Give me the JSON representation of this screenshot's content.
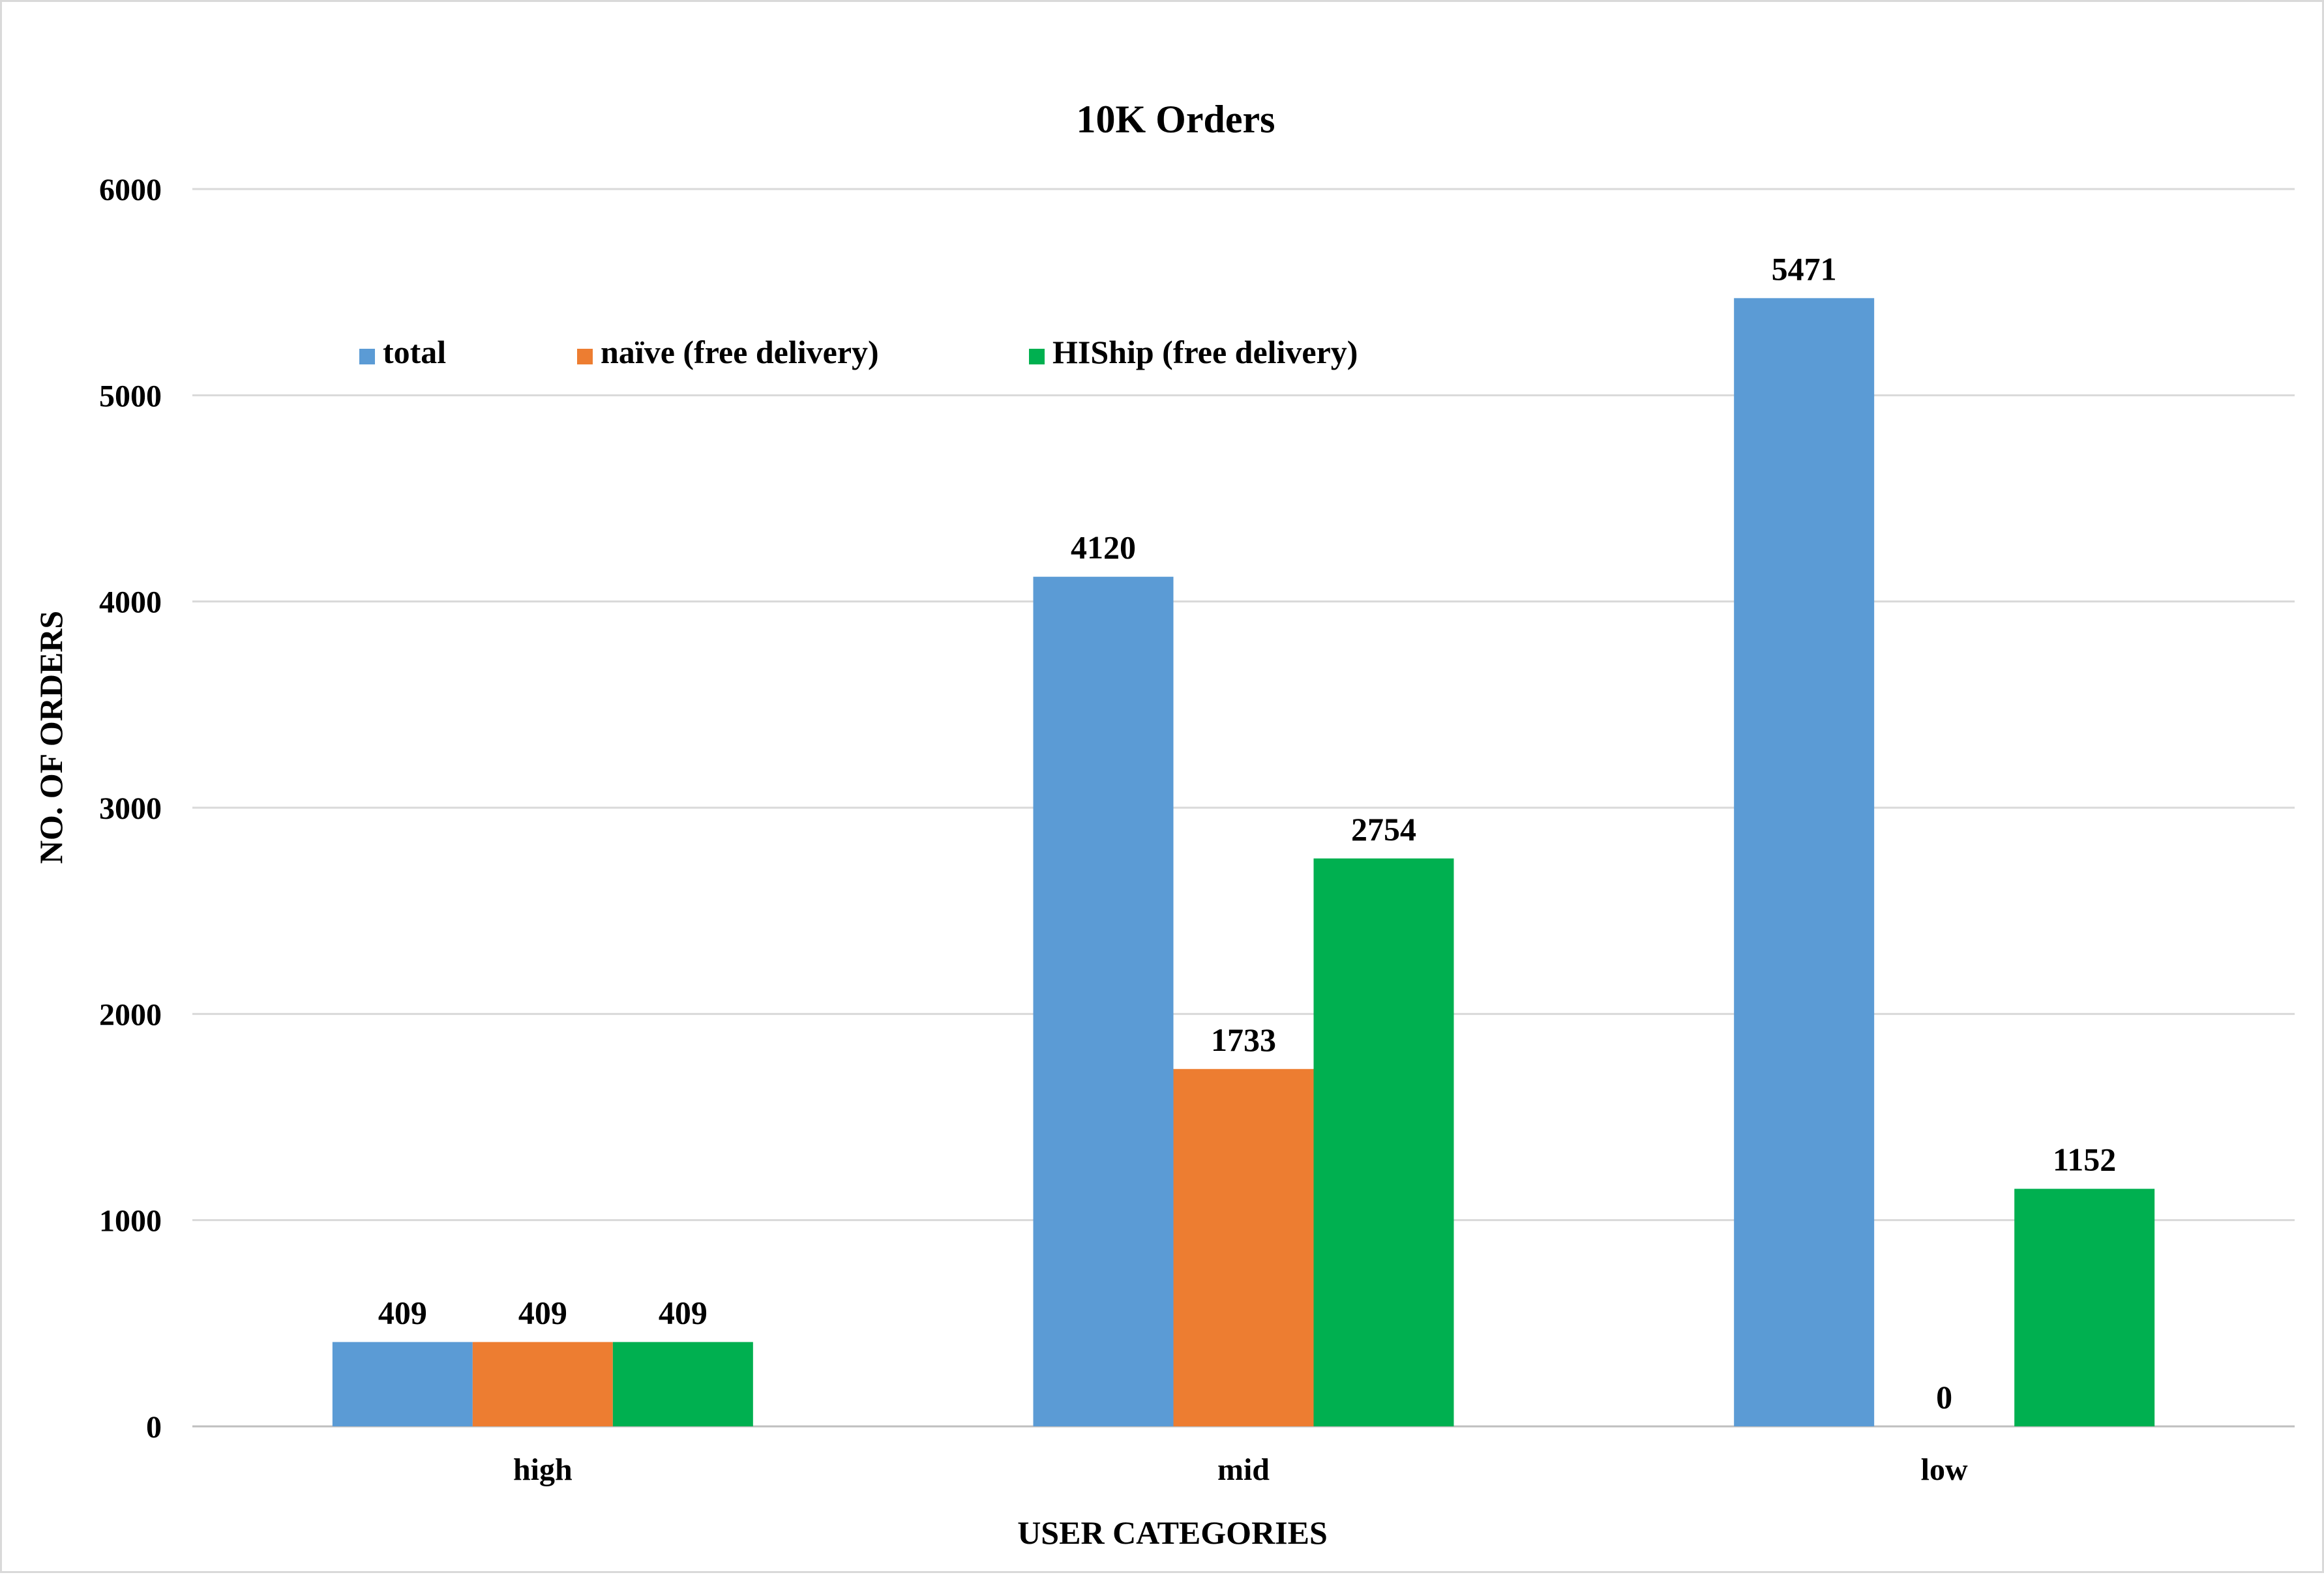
{
  "chart_data": {
    "type": "bar",
    "title": "10K Orders",
    "xlabel": "USER CATEGORIES",
    "ylabel": "NO. OF ORDERS",
    "categories": [
      "high",
      "mid",
      "low"
    ],
    "series": [
      {
        "name": "total",
        "color": "#5b9bd5",
        "values": [
          409,
          4120,
          5471
        ]
      },
      {
        "name": "naïve (free delivery)",
        "color": "#ed7d31",
        "values": [
          409,
          1733,
          0
        ]
      },
      {
        "name": "HIShip (free delivery)",
        "color": "#00b050",
        "values": [
          409,
          2754,
          1152
        ]
      }
    ],
    "ylim": [
      0,
      6000
    ],
    "yticks": [
      "0",
      "1000",
      "2000",
      "3000",
      "4000",
      "5000",
      "6000"
    ],
    "grid": true,
    "legend_position": "top-left",
    "data_labels": true
  }
}
